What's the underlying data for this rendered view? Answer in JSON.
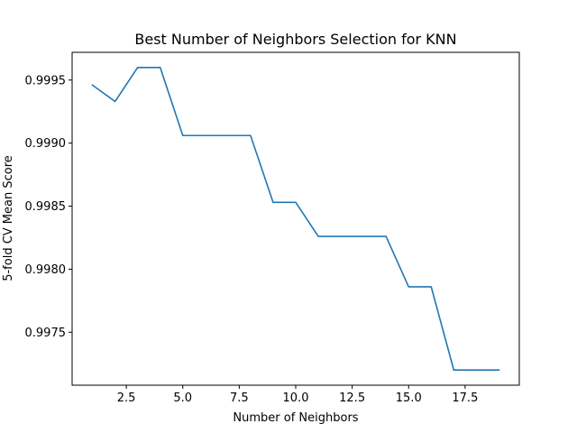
{
  "chart_data": {
    "type": "line",
    "title": "Best Number of Neighbors Selection for KNN",
    "xlabel": "Number of Neighbors",
    "ylabel": "5-fold CV Mean Score",
    "x": [
      1,
      2,
      3,
      4,
      5,
      6,
      7,
      8,
      9,
      10,
      11,
      12,
      13,
      14,
      15,
      16,
      17,
      18,
      19
    ],
    "series": [
      {
        "values": [
          0.99946,
          0.99933,
          0.9996,
          0.9996,
          0.99906,
          0.99906,
          0.99906,
          0.99906,
          0.99853,
          0.99853,
          0.99826,
          0.99826,
          0.99826,
          0.99826,
          0.99786,
          0.99786,
          0.9972,
          0.9972,
          0.9972
        ],
        "color": "#1f77b4"
      }
    ],
    "xlim": [
      0.1,
      19.9
    ],
    "ylim": [
      0.99708,
      0.99972
    ],
    "xticks": [
      2.5,
      5.0,
      7.5,
      10.0,
      12.5,
      15.0,
      17.5
    ],
    "xtick_labels": [
      "2.5",
      "5.0",
      "7.5",
      "10.0",
      "12.5",
      "15.0",
      "17.5"
    ],
    "yticks": [
      0.9975,
      0.998,
      0.9985,
      0.999,
      0.9995
    ],
    "ytick_labels": [
      "0.9975",
      "0.9980",
      "0.9985",
      "0.9990",
      "0.9995"
    ],
    "grid": false,
    "legend": false
  }
}
